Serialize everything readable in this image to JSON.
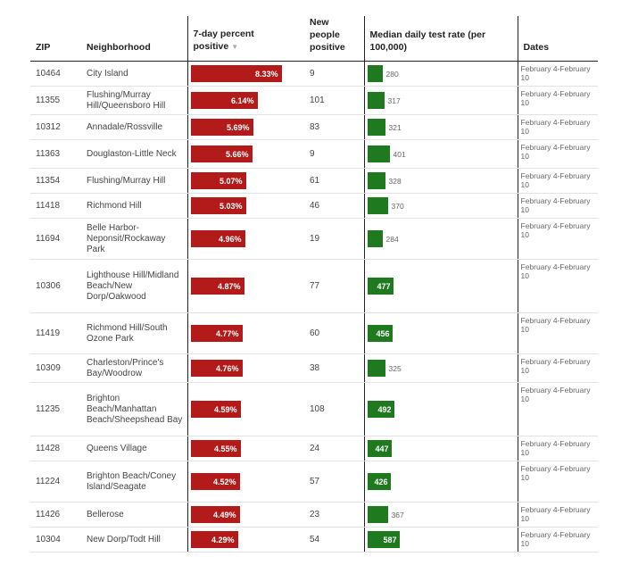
{
  "header": {
    "zip": "ZIP",
    "neighborhood": "Neighborhood",
    "pct": "7-day percent positive",
    "new_positive": "New people positive",
    "rate": "Median daily test rate (per 100,000)",
    "dates": "Dates"
  },
  "colors": {
    "pct_bar": "#b31b1b",
    "rate_bar": "#1f7a1f"
  },
  "chart_data": {
    "type": "table",
    "columns": [
      "ZIP",
      "Neighborhood",
      "7-day percent positive",
      "New people positive",
      "Median daily test rate (per 100,000)",
      "Dates"
    ],
    "pct_max": 8.33,
    "rate_max": 587,
    "rows": [
      {
        "zip": "10464",
        "neighborhood": "City Island",
        "pct": 8.33,
        "pct_label": "8.33%",
        "new_positive": "9",
        "rate": 280,
        "rate_label": "280",
        "dates": "February 4-February 10"
      },
      {
        "zip": "11355",
        "neighborhood": "Flushing/Murray Hill/Queensboro Hill",
        "pct": 6.14,
        "pct_label": "6.14%",
        "new_positive": "101",
        "rate": 317,
        "rate_label": "317",
        "dates": "February 4-February 10"
      },
      {
        "zip": "10312",
        "neighborhood": "Annadale/Rossville",
        "pct": 5.69,
        "pct_label": "5.69%",
        "new_positive": "83",
        "rate": 321,
        "rate_label": "321",
        "dates": "February 4-February 10"
      },
      {
        "zip": "11363",
        "neighborhood": "Douglaston-Little Neck",
        "pct": 5.66,
        "pct_label": "5.66%",
        "new_positive": "9",
        "rate": 401,
        "rate_label": "401",
        "dates": "February 4-February 10"
      },
      {
        "zip": "11354",
        "neighborhood": "Flushing/Murray Hill",
        "pct": 5.07,
        "pct_label": "5.07%",
        "new_positive": "61",
        "rate": 328,
        "rate_label": "328",
        "dates": "February 4-February 10"
      },
      {
        "zip": "11418",
        "neighborhood": "Richmond Hill",
        "pct": 5.03,
        "pct_label": "5.03%",
        "new_positive": "46",
        "rate": 370,
        "rate_label": "370",
        "dates": "February 4-February 10"
      },
      {
        "zip": "11694",
        "neighborhood": "Belle Harbor-Neponsit/Rockaway Park",
        "pct": 4.96,
        "pct_label": "4.96%",
        "new_positive": "19",
        "rate": 284,
        "rate_label": "284",
        "dates": "February 4-February 10"
      },
      {
        "zip": "10306",
        "neighborhood": "Lighthouse Hill/Midland Beach/New Dorp/Oakwood",
        "pct": 4.87,
        "pct_label": "4.87%",
        "new_positive": "77",
        "rate": 477,
        "rate_label": "477",
        "dates": "February 4-February 10"
      },
      {
        "zip": "11419",
        "neighborhood": "Richmond Hill/South Ozone Park",
        "pct": 4.77,
        "pct_label": "4.77%",
        "new_positive": "60",
        "rate": 456,
        "rate_label": "456",
        "dates": "February 4-February 10"
      },
      {
        "zip": "10309",
        "neighborhood": "Charleston/Prince's Bay/Woodrow",
        "pct": 4.76,
        "pct_label": "4.76%",
        "new_positive": "38",
        "rate": 325,
        "rate_label": "325",
        "dates": "February 4-February 10"
      },
      {
        "zip": "11235",
        "neighborhood": "Brighton Beach/Manhattan Beach/Sheepshead Bay",
        "pct": 4.59,
        "pct_label": "4.59%",
        "new_positive": "108",
        "rate": 492,
        "rate_label": "492",
        "dates": "February 4-February 10"
      },
      {
        "zip": "11428",
        "neighborhood": "Queens Village",
        "pct": 4.55,
        "pct_label": "4.55%",
        "new_positive": "24",
        "rate": 447,
        "rate_label": "447",
        "dates": "February 4-February 10"
      },
      {
        "zip": "11224",
        "neighborhood": "Brighton Beach/Coney Island/Seagate",
        "pct": 4.52,
        "pct_label": "4.52%",
        "new_positive": "57",
        "rate": 426,
        "rate_label": "426",
        "dates": "February 4-February 10"
      },
      {
        "zip": "11426",
        "neighborhood": "Bellerose",
        "pct": 4.49,
        "pct_label": "4.49%",
        "new_positive": "23",
        "rate": 367,
        "rate_label": "367",
        "dates": "February 4-February 10"
      },
      {
        "zip": "10304",
        "neighborhood": "New Dorp/Todt Hill",
        "pct": 4.29,
        "pct_label": "4.29%",
        "new_positive": "54",
        "rate": 587,
        "rate_label": "587",
        "dates": "February 4-February 10"
      }
    ]
  }
}
